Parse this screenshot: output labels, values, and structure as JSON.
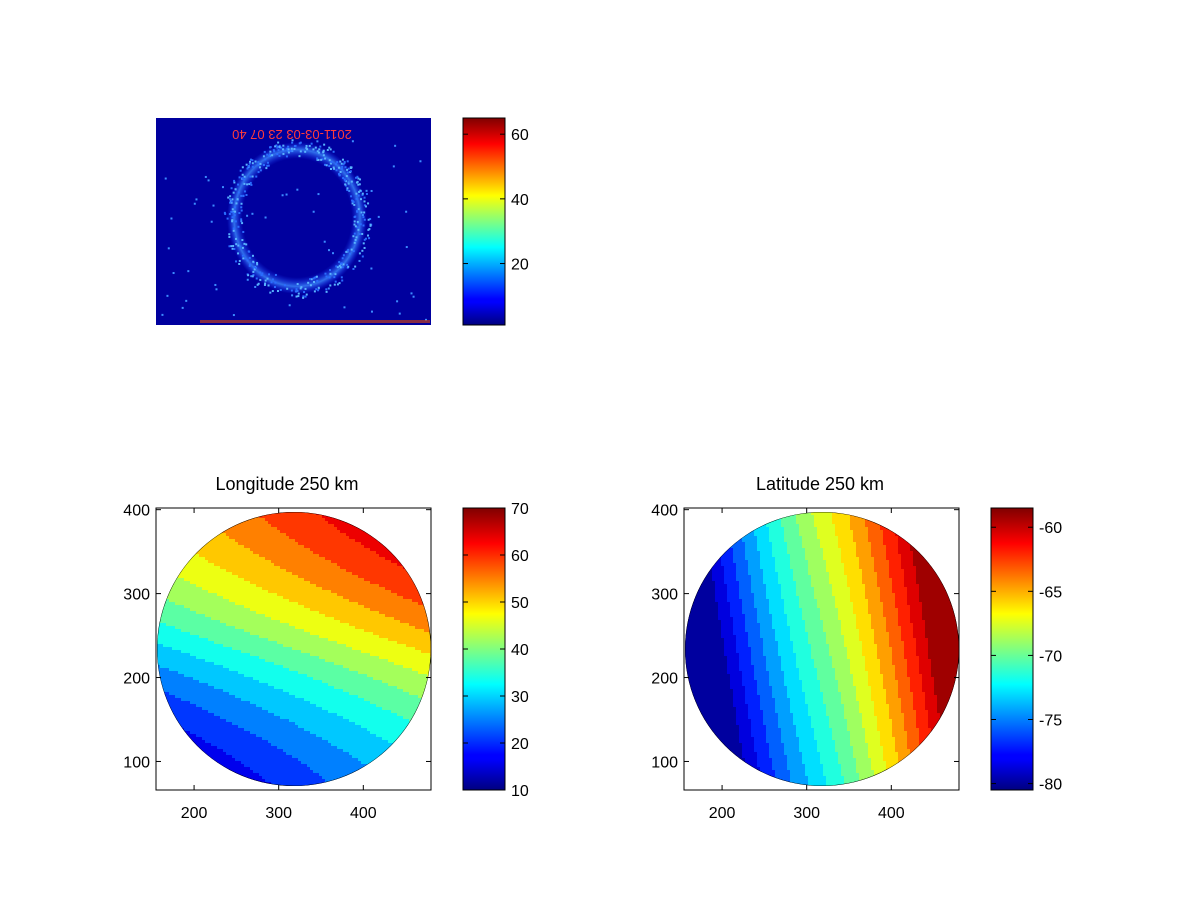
{
  "figure": {
    "background": "#ffffff"
  },
  "chart_data": [
    {
      "type": "heatmap",
      "title": "",
      "image_caption_text": "2011-03-03 23 07 40",
      "colorbar": {
        "ticks": [
          20,
          40,
          60
        ],
        "tick_labels": [
          "20",
          "40",
          "60"
        ],
        "range": [
          1,
          65
        ],
        "colormap": "jet"
      }
    },
    {
      "type": "heatmap",
      "title": "Longitude 250 km",
      "xticks": [
        200,
        300,
        400
      ],
      "xtick_labels": [
        "200",
        "300",
        "400"
      ],
      "yticks": [
        100,
        200,
        300,
        400
      ],
      "ytick_labels": [
        "100",
        "200",
        "300",
        "400"
      ],
      "xlim": [
        155,
        480
      ],
      "ylim": [
        66,
        402
      ],
      "colorbar": {
        "ticks": [
          10,
          20,
          30,
          40,
          50,
          60,
          70
        ],
        "tick_labels": [
          "10",
          "20",
          "30",
          "40",
          "50",
          "60",
          "70"
        ],
        "range": [
          10,
          70
        ],
        "colormap": "jet"
      },
      "value_range_in_disk": [
        10,
        70
      ],
      "contour_style": "filled contours with black lines"
    },
    {
      "type": "heatmap",
      "title": "Latitude 250 km",
      "xticks": [
        200,
        300,
        400
      ],
      "xtick_labels": [
        "200",
        "300",
        "400"
      ],
      "yticks": [
        100,
        200,
        300,
        400
      ],
      "ytick_labels": [
        "100",
        "200",
        "300",
        "400"
      ],
      "xlim": [
        155,
        480
      ],
      "ylim": [
        66,
        402
      ],
      "colorbar": {
        "ticks": [
          -80,
          -75,
          -70,
          -65,
          -60
        ],
        "tick_labels": [
          "-80",
          "-75",
          "-70",
          "-65",
          "-60"
        ],
        "range": [
          -80.5,
          -58.5
        ],
        "colormap": "jet"
      },
      "value_range_in_disk": [
        -80,
        -59
      ],
      "contour_style": "filled contours with black lines"
    }
  ]
}
